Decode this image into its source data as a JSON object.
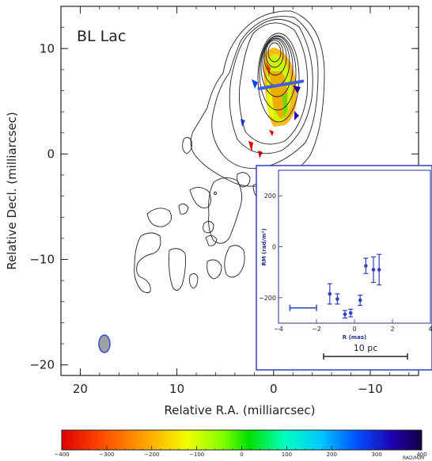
{
  "chart_data": [
    {
      "type": "contour",
      "title": "BL Lac",
      "xlabel": "Relative R.A. (milliarcsec)",
      "ylabel": "Relative Decl. (milliarcsec)",
      "xlim": [
        22,
        -15
      ],
      "ylim": [
        -21,
        14
      ],
      "x_ticks": [
        "20",
        "10",
        "0",
        "−10"
      ],
      "y_ticks": [
        "10",
        "0",
        "−10",
        "−20"
      ],
      "x_tick_values": [
        20,
        10,
        0,
        -10
      ],
      "y_tick_values": [
        10,
        0,
        -10,
        -20
      ],
      "core_position": [
        0,
        10
      ],
      "slice_line": {
        "from": [
          1.5,
          6.2
        ],
        "to": [
          -3.0,
          6.9
        ]
      },
      "beam_position": [
        17.5,
        -18
      ],
      "colorbar": {
        "ticks": [
          "−400",
          "−300",
          "−200",
          "−100",
          "0",
          "100",
          "200",
          "300",
          "400"
        ],
        "tick_values": [
          -400,
          -300,
          -200,
          -100,
          0,
          100,
          200,
          300,
          400
        ],
        "range": [
          -400,
          400
        ],
        "unit": "RAD/M/M"
      }
    },
    {
      "type": "scatter_errorbar",
      "xlabel": "R (mas)",
      "ylabel": "RM (rad/m²)",
      "xlim": [
        -4,
        4
      ],
      "ylim": [
        -300,
        300
      ],
      "x_ticks": [
        "−4",
        "−2",
        "0",
        "2",
        "4"
      ],
      "x_tick_values": [
        -4,
        -2,
        0,
        2,
        4
      ],
      "y_ticks": [
        "200",
        "0",
        "−200"
      ],
      "y_tick_values": [
        200,
        0,
        -200
      ],
      "points": [
        {
          "x": -1.3,
          "y": -185,
          "err": 40
        },
        {
          "x": -0.9,
          "y": -205,
          "err": 20
        },
        {
          "x": -0.5,
          "y": -265,
          "err": 15
        },
        {
          "x": -0.2,
          "y": -260,
          "err": 15
        },
        {
          "x": 0.3,
          "y": -210,
          "err": 20
        },
        {
          "x": 0.6,
          "y": -75,
          "err": 30
        },
        {
          "x": 1.0,
          "y": -90,
          "err": 50
        },
        {
          "x": 1.3,
          "y": -90,
          "err": 60
        }
      ],
      "resolution_bar": {
        "x": [
          -3.4,
          -2.0
        ],
        "y": -240
      },
      "scale_bar_label": "10 pc"
    }
  ]
}
